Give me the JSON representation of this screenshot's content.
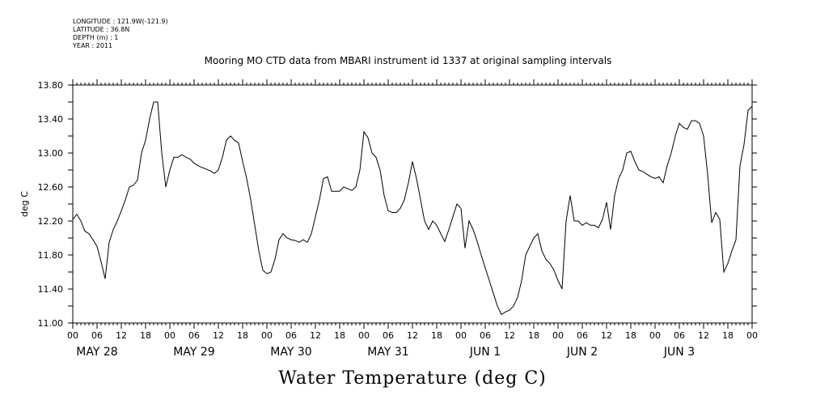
{
  "meta": {
    "longitude": "LONGITUDE : 121.9W(-121.9)",
    "latitude": "LATITUDE : 36.8N",
    "depth": "DEPTH (m) : 1",
    "year": "YEAR : 2011"
  },
  "chart_data": {
    "type": "line",
    "title": "Mooring MO CTD data from MBARI instrument id 1337 at original sampling intervals",
    "xlabel": "Water Temperature (deg C)",
    "ylabel": "deg C",
    "xlim": [
      0,
      168
    ],
    "ylim": [
      11.0,
      13.8
    ],
    "yticks": [
      "11.00",
      "11.40",
      "11.80",
      "12.20",
      "12.60",
      "13.00",
      "13.40",
      "13.80"
    ],
    "hour_labels": [
      "00",
      "06",
      "12",
      "18"
    ],
    "day_labels": [
      "MAY 28",
      "MAY 29",
      "MAY 30",
      "MAY 31",
      "JUN  1",
      "JUN  2",
      "JUN  3"
    ],
    "final_hour_label": "00",
    "series": [
      {
        "x": [
          0,
          1,
          2,
          3,
          4,
          5,
          6,
          7,
          8,
          9,
          10,
          11,
          12,
          13,
          14,
          15,
          16,
          17,
          18,
          19,
          20,
          21,
          22,
          23,
          24,
          25,
          26,
          27,
          28,
          29,
          30,
          31,
          32,
          33,
          34,
          35,
          36,
          37,
          38,
          39,
          40,
          41,
          42,
          43,
          44,
          45,
          46,
          47,
          48,
          49,
          50,
          51,
          52,
          53,
          54,
          55,
          56,
          57,
          58,
          59,
          60,
          61,
          62,
          63,
          64,
          65,
          66,
          67,
          68,
          69,
          70,
          71,
          72,
          73,
          74,
          75,
          76,
          77,
          78,
          79,
          80,
          81,
          82,
          83,
          84,
          85,
          86,
          87,
          88,
          89,
          90,
          91,
          92,
          93,
          94,
          95,
          96,
          97,
          98,
          99,
          100,
          101,
          102,
          103,
          104,
          105,
          106,
          107,
          108,
          109,
          110,
          111,
          112,
          113,
          114,
          115,
          116,
          117,
          118,
          119,
          120,
          121,
          122,
          123,
          124,
          125,
          126,
          127,
          128,
          129,
          130,
          131,
          132,
          133,
          134,
          135,
          136,
          137,
          138,
          139,
          140,
          141,
          142,
          143,
          144,
          145,
          146,
          147,
          148,
          149,
          150,
          151,
          152,
          153,
          154,
          155,
          156,
          157,
          158,
          159,
          160,
          161,
          162,
          163,
          164,
          165,
          166,
          167,
          168
        ],
        "y": [
          12.22,
          12.28,
          12.2,
          12.08,
          12.05,
          11.98,
          11.9,
          11.72,
          11.52,
          11.95,
          12.1,
          12.2,
          12.32,
          12.45,
          12.6,
          12.62,
          12.68,
          13.0,
          13.15,
          13.4,
          13.6,
          13.6,
          13.0,
          12.6,
          12.8,
          12.95,
          12.95,
          12.98,
          12.95,
          12.93,
          12.88,
          12.85,
          12.83,
          12.81,
          12.79,
          12.76,
          12.8,
          12.95,
          13.15,
          13.2,
          13.15,
          13.12,
          12.9,
          12.7,
          12.45,
          12.15,
          11.85,
          11.62,
          11.58,
          11.6,
          11.75,
          11.98,
          12.05,
          12.0,
          11.98,
          11.97,
          11.95,
          11.98,
          11.95,
          12.05,
          12.25,
          12.45,
          12.7,
          12.72,
          12.55,
          12.55,
          12.55,
          12.6,
          12.58,
          12.56,
          12.6,
          12.8,
          13.25,
          13.18,
          13.0,
          12.95,
          12.8,
          12.5,
          12.32,
          12.3,
          12.3,
          12.35,
          12.45,
          12.65,
          12.9,
          12.7,
          12.45,
          12.2,
          12.1,
          12.2,
          12.15,
          12.05,
          11.96,
          12.1,
          12.25,
          12.4,
          12.35,
          11.88,
          12.2,
          12.1,
          11.96,
          11.8,
          11.65,
          11.5,
          11.35,
          11.2,
          11.1,
          11.13,
          11.15,
          11.2,
          11.3,
          11.5,
          11.8,
          11.9,
          12.0,
          12.05,
          11.85,
          11.75,
          11.7,
          11.62,
          11.5,
          11.4,
          12.2,
          12.5,
          12.2,
          12.2,
          12.15,
          12.18,
          12.15,
          12.15,
          12.12,
          12.22,
          12.42,
          12.1,
          12.5,
          12.7,
          12.8,
          13.0,
          13.02,
          12.9,
          12.8,
          12.78,
          12.75,
          12.72,
          12.7,
          12.72,
          12.65,
          12.85,
          13.0,
          13.2,
          13.35,
          13.3,
          13.28,
          13.38,
          13.38,
          13.35,
          13.2,
          12.75,
          12.18,
          12.3,
          12.22,
          11.6,
          11.7,
          11.85,
          11.98,
          12.85,
          13.1,
          13.5,
          13.55
        ]
      }
    ],
    "grid": false,
    "legend": "none"
  }
}
